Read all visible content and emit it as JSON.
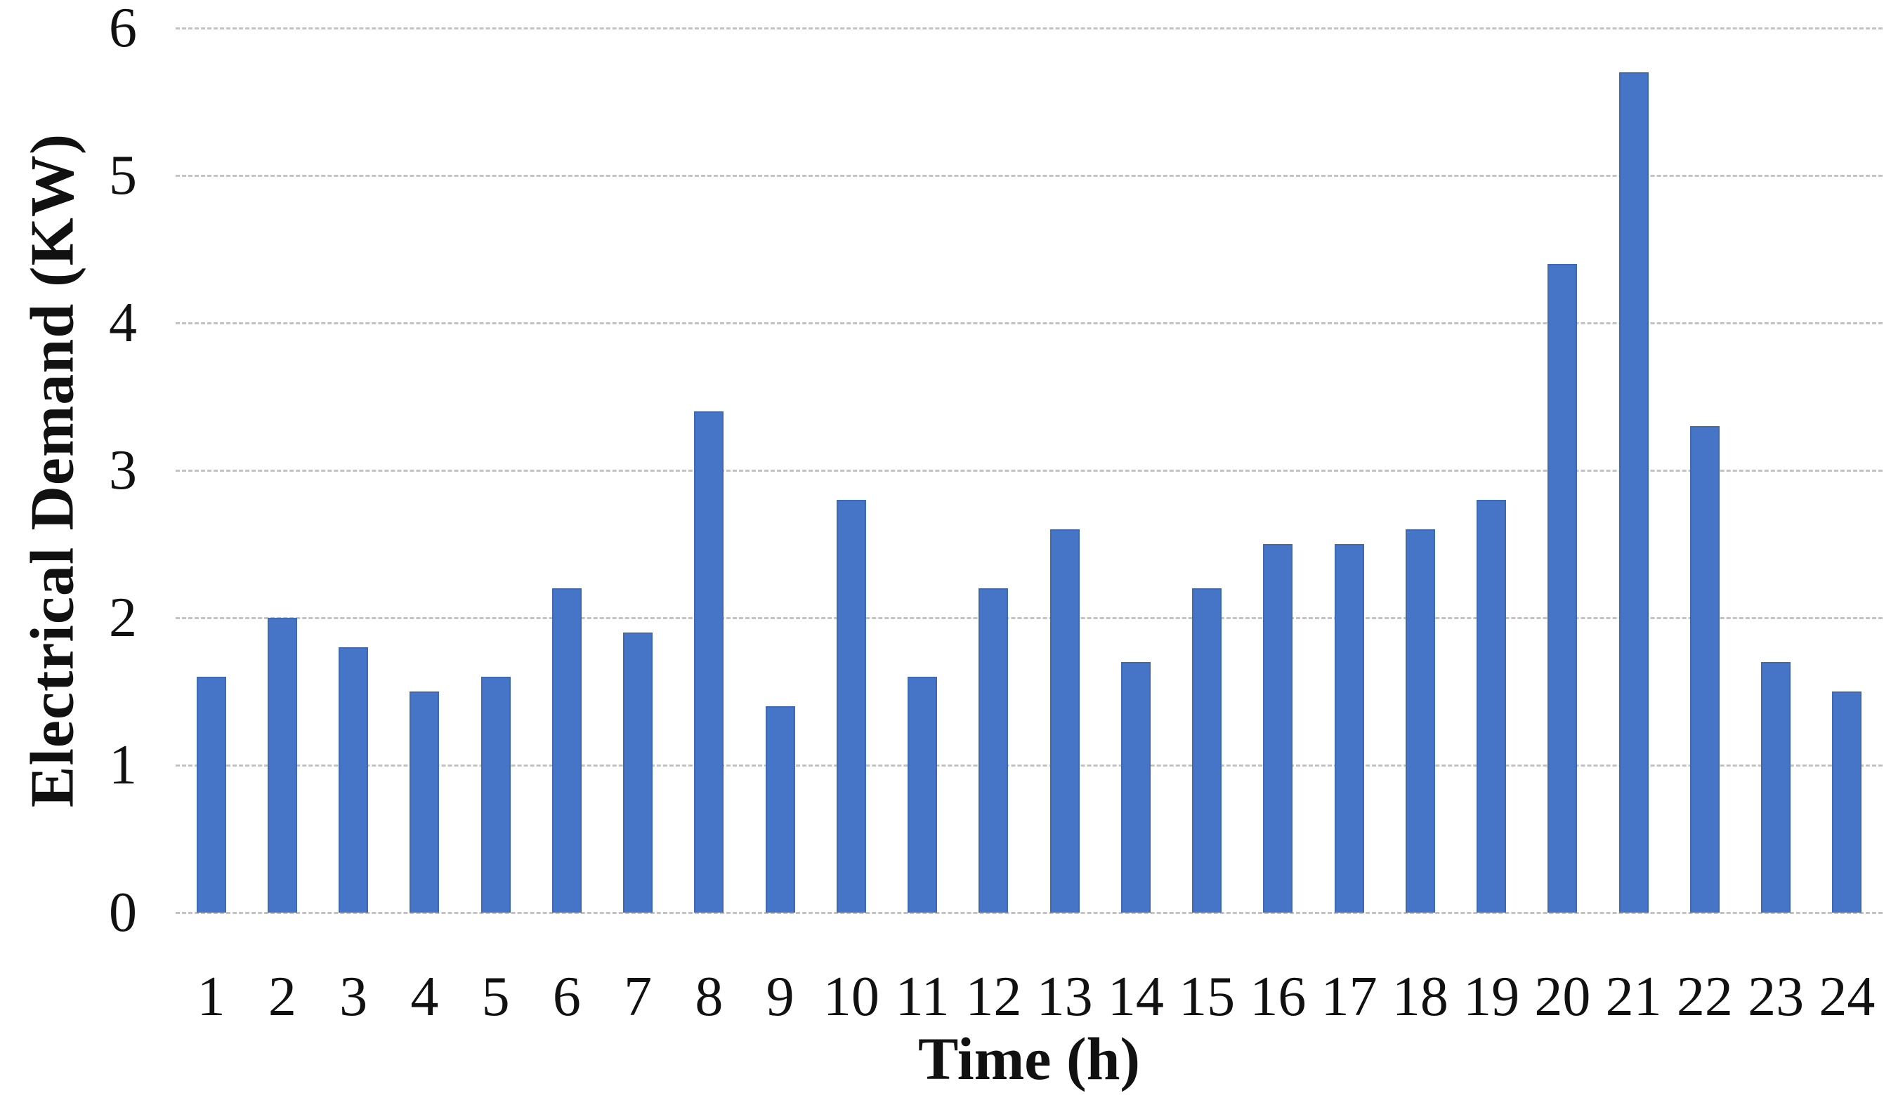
{
  "chart_data": {
    "type": "bar",
    "categories": [
      "1",
      "2",
      "3",
      "4",
      "5",
      "6",
      "7",
      "8",
      "9",
      "10",
      "11",
      "12",
      "13",
      "14",
      "15",
      "16",
      "17",
      "18",
      "19",
      "20",
      "21",
      "22",
      "23",
      "24"
    ],
    "values": [
      1.6,
      2,
      1.8,
      1.5,
      1.6,
      2.2,
      1.9,
      3.4,
      1.4,
      2.8,
      1.6,
      2.2,
      2.6,
      1.7,
      2.2,
      2.5,
      2.5,
      2.6,
      2.8,
      4.4,
      5.7,
      3.3,
      1.7,
      1.5
    ],
    "title": "",
    "xlabel": "Time (h)",
    "ylabel": "Electrical Demand (KW)",
    "ylim": [
      0,
      6
    ],
    "yticks": [
      0,
      1,
      2,
      3,
      4,
      5,
      6
    ],
    "grid": true,
    "legend_position": "none",
    "bar_color": "#4674c7",
    "bar_border_color": "#3e69b3",
    "gridline_color": "#c3c3c3",
    "text_color": "#111111"
  }
}
